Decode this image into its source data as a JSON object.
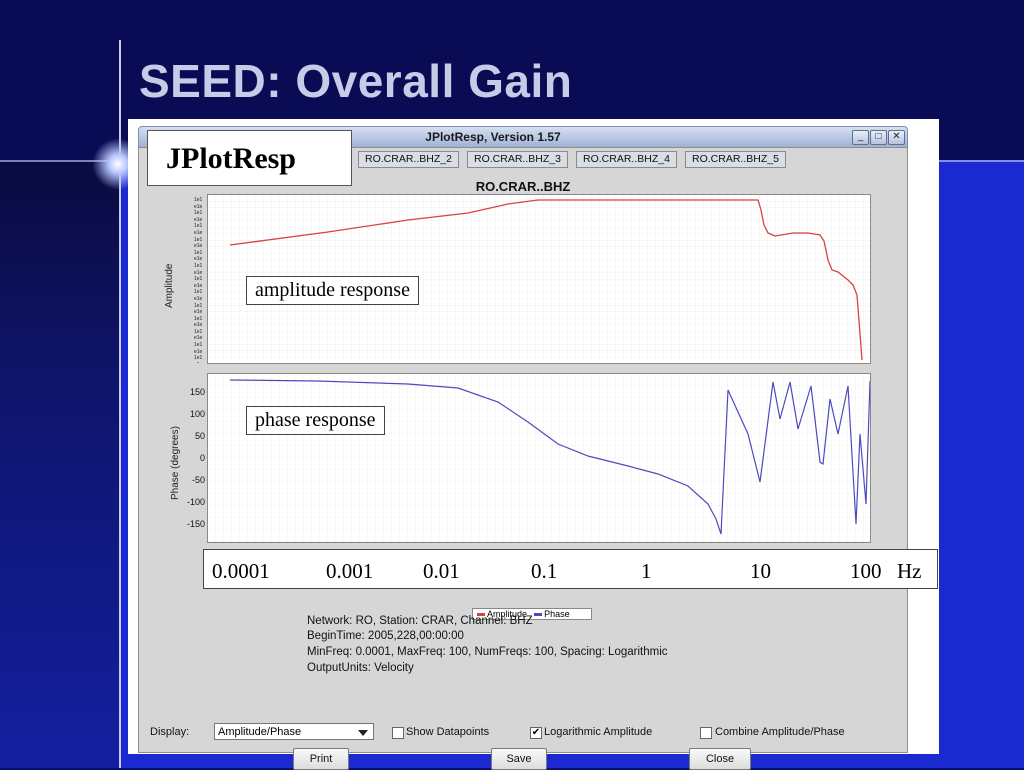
{
  "slide": {
    "title": "SEED: Overall Gain"
  },
  "window": {
    "title": "JPlotResp, Version 1.57",
    "buttons": [
      "_",
      "□",
      "✕"
    ],
    "tabs": [
      "RO.CRAR..BHZ_2",
      "RO.CRAR..BHZ_3",
      "RO.CRAR..BHZ_4",
      "RO.CRAR..BHZ_5"
    ],
    "chart_title": "RO.CRAR..BHZ"
  },
  "callouts": {
    "app_label": "JPlotResp",
    "amplitude": "amplitude response",
    "phase": "phase response"
  },
  "amplitude_plot": {
    "ylabel": "Amplitude",
    "color": "#d9423f"
  },
  "phase_plot": {
    "ylabel": "Phase (degrees)",
    "yticks": [
      "150",
      "100",
      "50",
      "0",
      "-50",
      "-100",
      "-150"
    ],
    "color": "#4b4bc0"
  },
  "frequency_axis": {
    "labels": [
      "0.0001",
      "0.001",
      "0.01",
      "0.1",
      "1",
      "10",
      "100"
    ],
    "unit": "Hz"
  },
  "legend": {
    "items": [
      "Amplitude",
      "Phase"
    ]
  },
  "info": {
    "line1": "Network: RO,  Station: CRAR,  Channel: BHZ",
    "line2": "BeginTime: 2005,228,00:00:00",
    "line3": "MinFreq: 0.0001,  MaxFreq: 100,  NumFreqs: 100,  Spacing: Logarithmic",
    "line4": "OutputUnits: Velocity"
  },
  "controls": {
    "display_label": "Display:",
    "display_value": "Amplitude/Phase",
    "show_datapoints": {
      "label": "Show Datapoints",
      "checked": false
    },
    "log_amplitude": {
      "label": "Logarithmic Amplitude",
      "checked": true
    },
    "combine": {
      "label": "Combine Amplitude/Phase",
      "checked": false
    },
    "print_label": "Print",
    "save_label": "Save",
    "close_label": "Close"
  }
}
